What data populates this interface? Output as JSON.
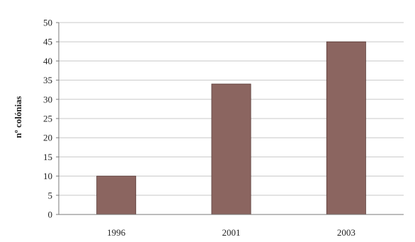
{
  "chart_data": {
    "type": "bar",
    "categories": [
      "1996",
      "2001",
      "2003"
    ],
    "values": [
      10,
      34,
      45
    ],
    "title": "",
    "xlabel": "",
    "ylabel": "nº colónias",
    "ylim": [
      0,
      50
    ],
    "yticks": [
      "0",
      "5",
      "10",
      "15",
      "20",
      "25",
      "30",
      "35",
      "40",
      "45",
      "50"
    ],
    "grid": true,
    "legend": "none",
    "colors": {
      "bar": "#8b6560",
      "bar_edge": "#5a3c38",
      "grid": "#c8c8c8",
      "axis": "#7a7a7a"
    }
  }
}
